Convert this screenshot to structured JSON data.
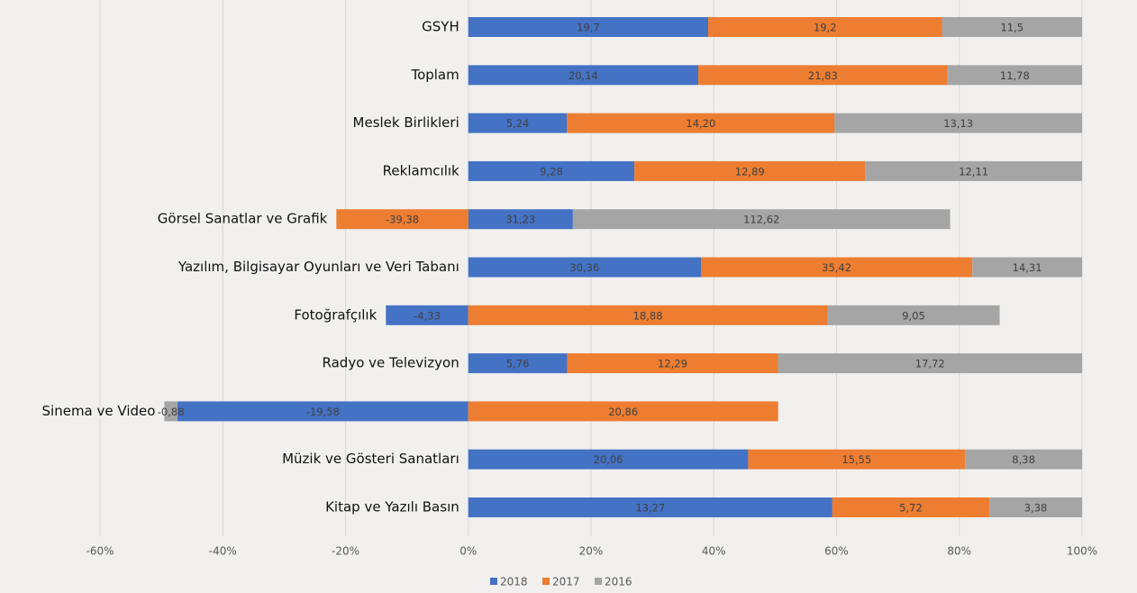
{
  "chart_data": {
    "type": "bar",
    "orientation": "horizontal",
    "stacking": "percent",
    "categories": [
      "GSYH",
      "Toplam",
      "Meslek Birlikleri",
      "Reklamcılık",
      "Görsel Sanatlar ve Grafik",
      "Yazılım, Bilgisayar Oyunları ve Veri Tabanı",
      "Fotoğrafçılık",
      "Radyo ve Televizyon",
      "Sinema ve Video",
      "Müzik ve Gösteri Sanatları",
      "Kitap ve Yazılı Basın"
    ],
    "series": [
      {
        "name": "2018",
        "color": "#4472c4",
        "values": [
          19.7,
          20.14,
          5.24,
          9.28,
          31.23,
          30.36,
          -4.33,
          5.76,
          -19.58,
          20.06,
          13.27
        ],
        "value_labels": [
          "19,7",
          "20,14",
          "5,24",
          "9,28",
          "31,23",
          "30,36",
          "-4,33",
          "5,76",
          "-19,58",
          "20,06",
          "13,27"
        ]
      },
      {
        "name": "2017",
        "color": "#ed7d31",
        "values": [
          19.2,
          21.83,
          14.2,
          12.89,
          -39.38,
          35.42,
          18.88,
          12.29,
          20.86,
          15.55,
          5.72
        ],
        "value_labels": [
          "19,2",
          "21,83",
          "14,20",
          "12,89",
          "-39,38",
          "35,42",
          "18,88",
          "12,29",
          "20,86",
          "15,55",
          "5,72"
        ]
      },
      {
        "name": "2016",
        "color": "#a5a5a5",
        "values": [
          11.5,
          11.78,
          13.13,
          12.11,
          112.62,
          14.31,
          9.05,
          17.72,
          -0.88,
          8.38,
          3.38
        ],
        "value_labels": [
          "11,5",
          "11,78",
          "13,13",
          "12,11",
          "112,62",
          "14,31",
          "9,05",
          "17,72",
          "-0,88",
          "8,38",
          "3,38"
        ]
      }
    ],
    "xlim": [
      -60,
      100
    ],
    "xticks": [
      {
        "value": -60,
        "label": "-60%"
      },
      {
        "value": -40,
        "label": "-40%"
      },
      {
        "value": -20,
        "label": "-20%"
      },
      {
        "value": 0,
        "label": "0%"
      },
      {
        "value": 20,
        "label": "20%"
      },
      {
        "value": 40,
        "label": "40%"
      },
      {
        "value": 60,
        "label": "60%"
      },
      {
        "value": 80,
        "label": "80%"
      },
      {
        "value": 100,
        "label": "100%"
      }
    ],
    "grid": true,
    "legend": "bottom"
  }
}
